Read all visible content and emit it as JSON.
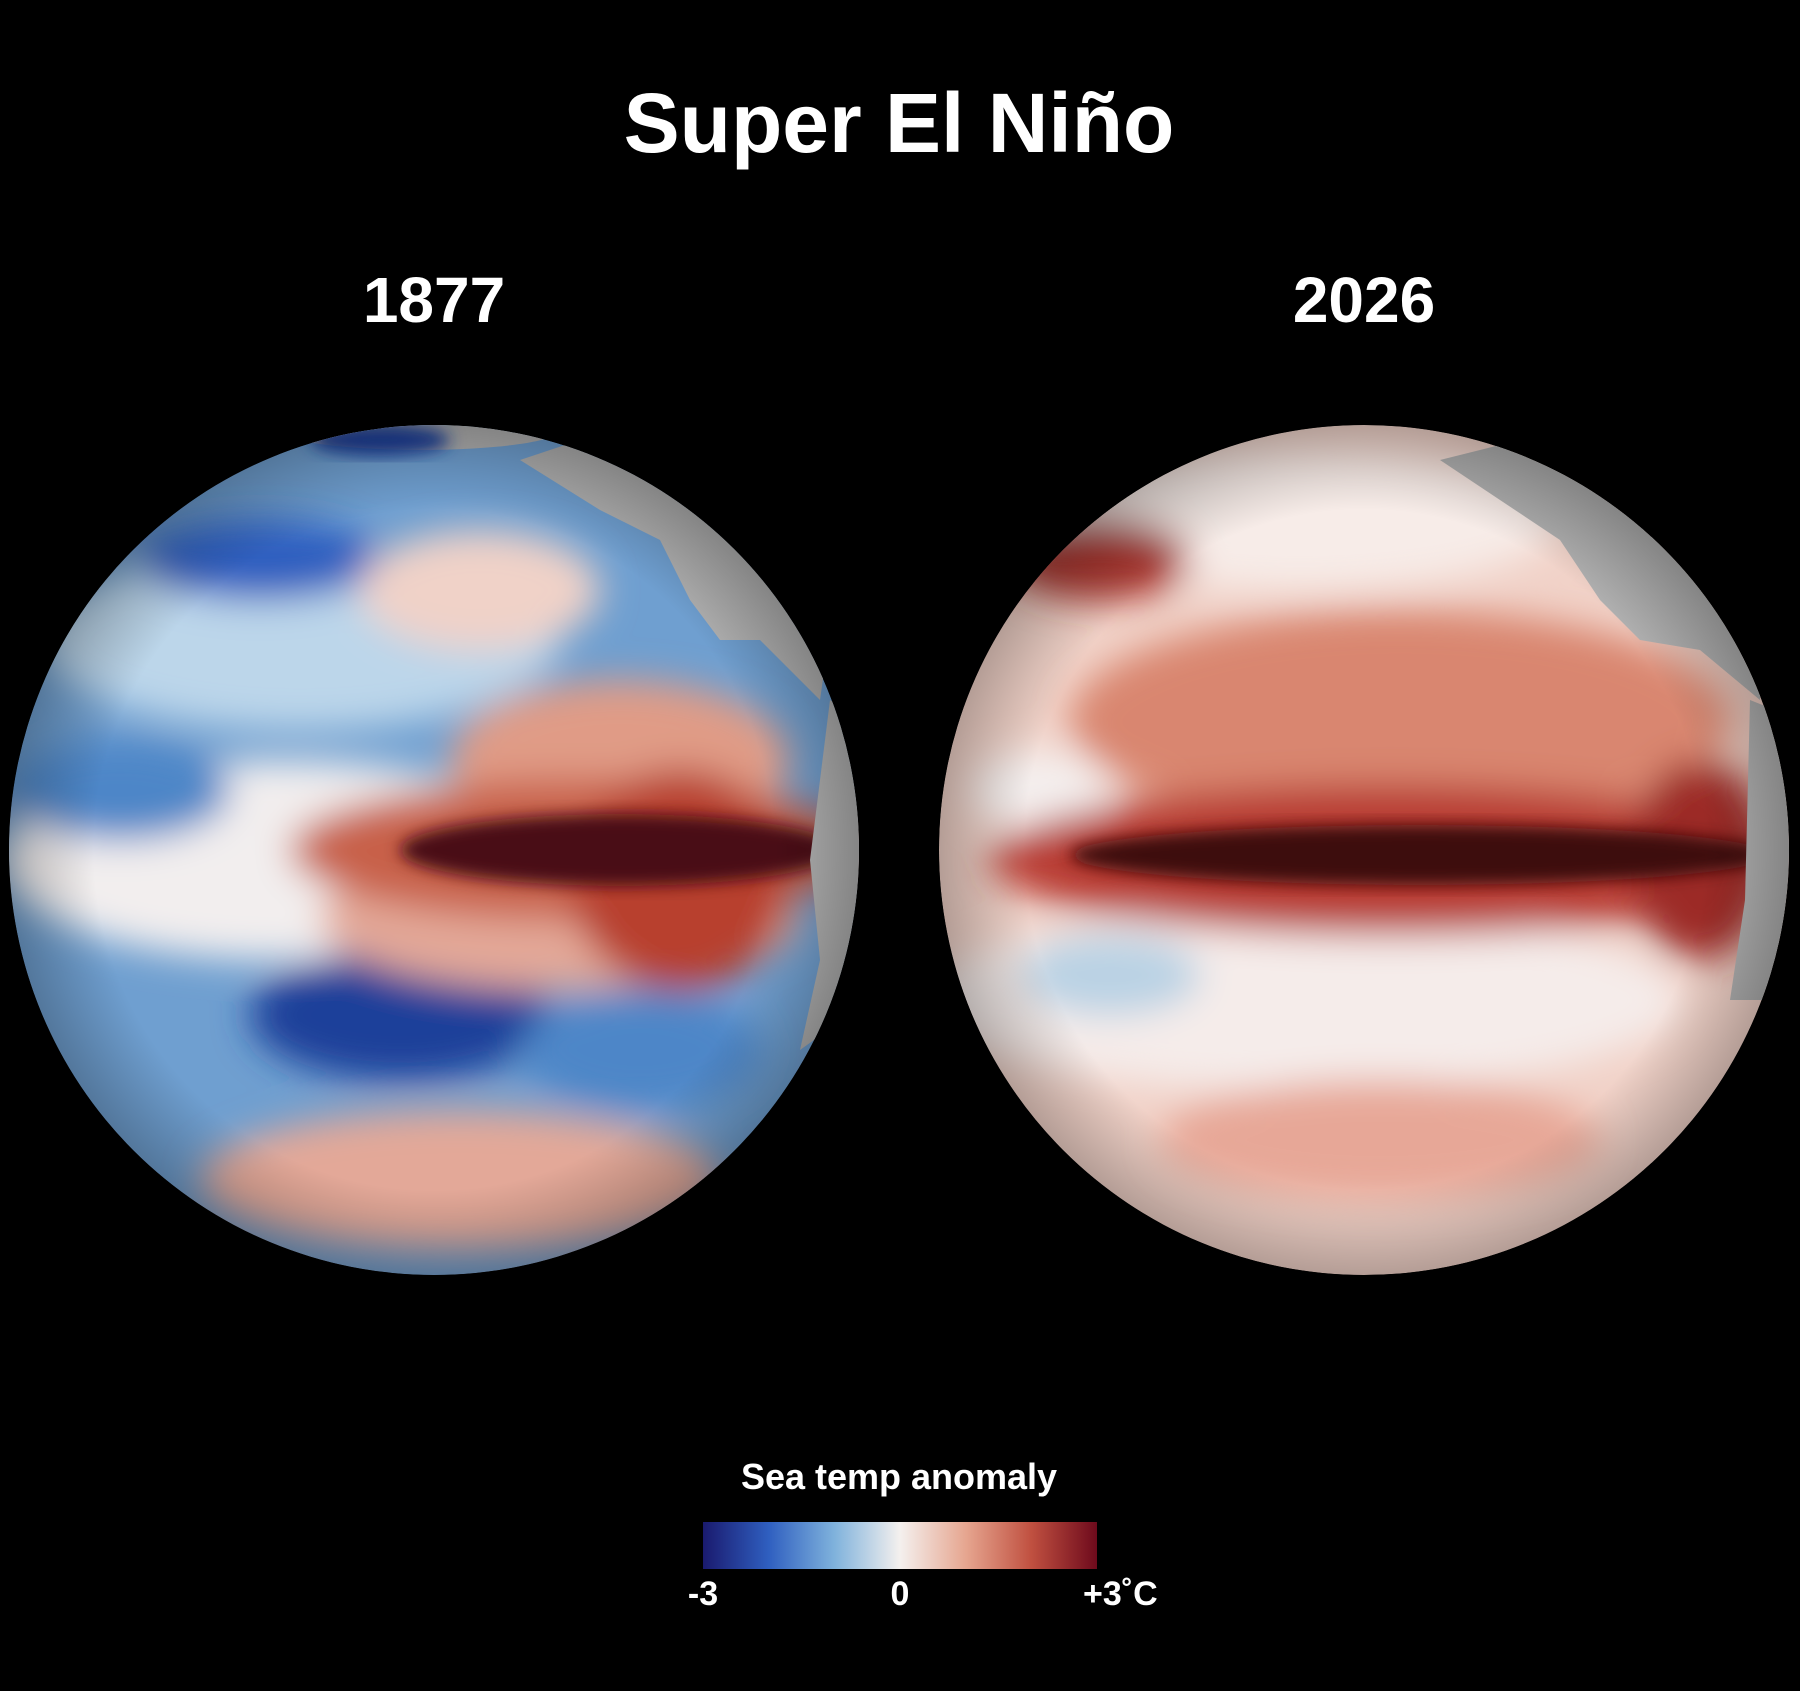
{
  "title": "Super El Niño",
  "panels": [
    {
      "label": "1877"
    },
    {
      "label": "2026"
    }
  ],
  "legend": {
    "title": "Sea temp anomaly",
    "range": [
      -3,
      3
    ],
    "ticks": [
      -3,
      0,
      {
        "value": 3,
        "label": "+3˚C"
      }
    ],
    "colors": [
      "#1a1a6e",
      "#2f5fc0",
      "#7fb2dc",
      "#f4f0ee",
      "#e6a690",
      "#c05040",
      "#6e0a1c"
    ]
  }
}
